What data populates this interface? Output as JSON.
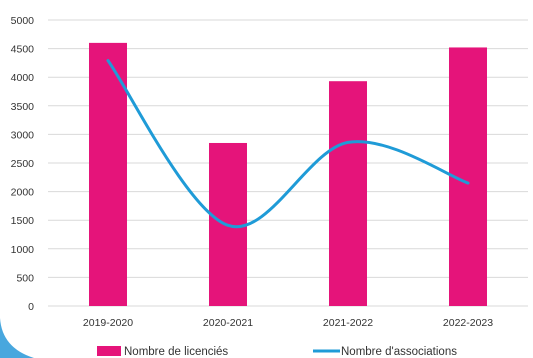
{
  "colors": {
    "bar": "#e5147a",
    "line": "#1f9bd7",
    "grid": "#d9d9d9",
    "text": "#333333",
    "corner_accent": "#48a7de"
  },
  "legend": {
    "bars_label": "Nombre de licenciés",
    "line_label": "Nombre d'associations"
  },
  "chart_data": {
    "type": "bar",
    "categories": [
      "2019-2020",
      "2020-2021",
      "2021-2022",
      "2022-2023"
    ],
    "series": [
      {
        "name": "Nombre de licenciés",
        "type": "bar",
        "values": [
          4600,
          2850,
          3930,
          4520
        ]
      },
      {
        "name": "Nombre d'associations",
        "type": "line",
        "smooth": true,
        "values": [
          4290,
          1410,
          2860,
          2150
        ]
      }
    ],
    "ylim": [
      0,
      5000
    ],
    "yticks": [
      0,
      500,
      1000,
      1500,
      2000,
      2500,
      3000,
      3500,
      4000,
      4500,
      5000
    ],
    "grid": true,
    "legend_position": "bottom",
    "title": "",
    "xlabel": "",
    "ylabel": ""
  }
}
